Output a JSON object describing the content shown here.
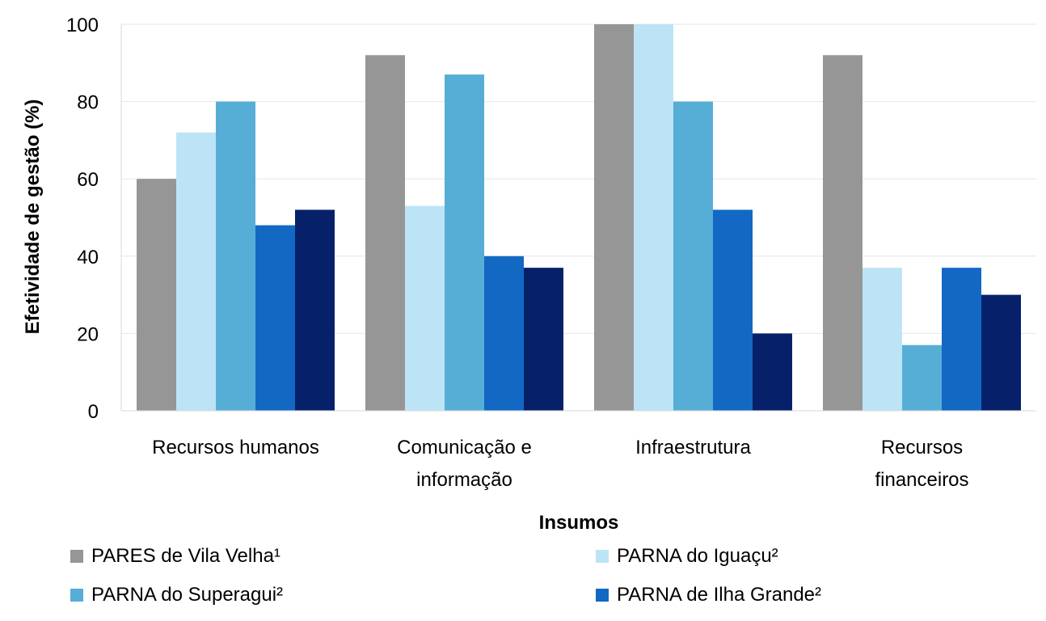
{
  "chart_data": {
    "type": "bar",
    "title": "",
    "xlabel": "Insumos",
    "ylabel": "Efetividade de gestão (%)",
    "ylim": [
      0,
      100
    ],
    "yticks": [
      "0",
      "20",
      "40",
      "60",
      "80",
      "100"
    ],
    "grid": true,
    "legend_position": "bottom",
    "categories": [
      [
        "Recursos humanos"
      ],
      [
        "Comunicação e",
        "informação"
      ],
      [
        "Infraestrutura"
      ],
      [
        "Recursos",
        "financeiros"
      ]
    ],
    "series": [
      {
        "name": "PARES de Vila Velha¹",
        "color": "#969696",
        "values": [
          60,
          92,
          100,
          92
        ]
      },
      {
        "name": "PARNA do Iguaçu²",
        "color": "#bde3f7",
        "values": [
          72,
          53,
          100,
          37
        ]
      },
      {
        "name": "PARNA do Superagui²",
        "color": "#56aed6",
        "values": [
          80,
          87,
          80,
          17
        ]
      },
      {
        "name": "PARNA de Ilha Grande²",
        "color": "#1368c4",
        "values": [
          48,
          40,
          52,
          37
        ]
      },
      {
        "name": "",
        "color": "#06216a",
        "values": [
          52,
          37,
          20,
          30
        ]
      }
    ]
  }
}
